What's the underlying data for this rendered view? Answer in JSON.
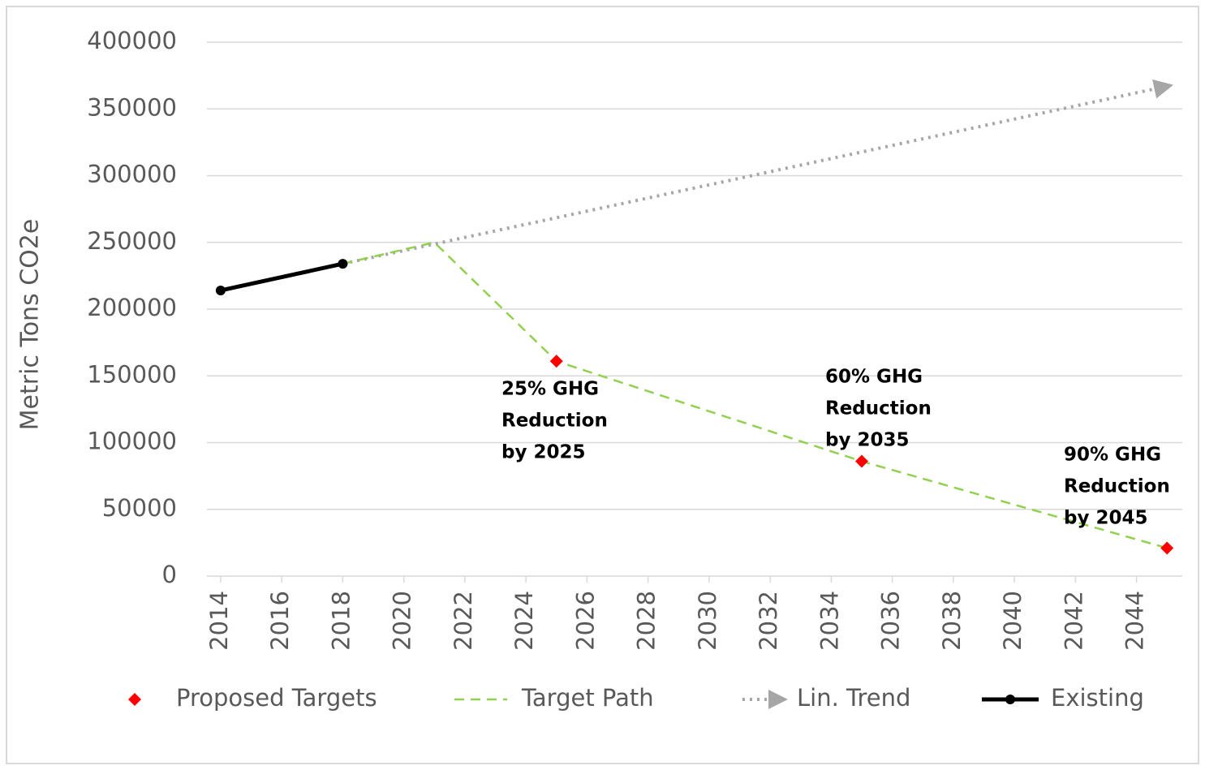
{
  "chart_data": {
    "type": "line",
    "y_label": "Metric Tons CO2e",
    "xlim": [
      2013.55,
      2045.5
    ],
    "xticks": [
      2014,
      2016,
      2018,
      2020,
      2022,
      2024,
      2026,
      2028,
      2030,
      2032,
      2034,
      2036,
      2038,
      2040,
      2042,
      2044
    ],
    "ylim": [
      0,
      400000
    ],
    "yticks": [
      0,
      50000,
      100000,
      150000,
      200000,
      250000,
      300000,
      350000,
      400000
    ],
    "grid": true,
    "legend": "bottom",
    "series": [
      {
        "name": "Proposed Targets",
        "color": "#ff0000",
        "style": "markers",
        "x": [
          2025,
          2035,
          2045
        ],
        "values": [
          161000,
          86000,
          21000
        ]
      },
      {
        "name": "Target Path",
        "color": "#92d050",
        "style": "dashed",
        "x": [
          2018,
          2021,
          2025,
          2035,
          2045
        ],
        "values": [
          234000,
          250000,
          161000,
          86000,
          21000
        ]
      },
      {
        "name": "Lin. Trend",
        "color": "#a6a6a6",
        "style": "dotted-arrow",
        "x": [
          2018,
          2045
        ],
        "values": [
          234000,
          367000
        ]
      },
      {
        "name": "Existing",
        "color": "#000000",
        "style": "solid-dots",
        "x": [
          2014,
          2018
        ],
        "values": [
          214000,
          234000
        ]
      }
    ],
    "annotations": [
      [
        "25% GHG",
        "Reduction",
        "by 2025"
      ],
      [
        "60% GHG",
        "Reduction",
        "by 2035"
      ],
      [
        "90% GHG",
        "Reduction",
        "by 2045"
      ]
    ]
  }
}
